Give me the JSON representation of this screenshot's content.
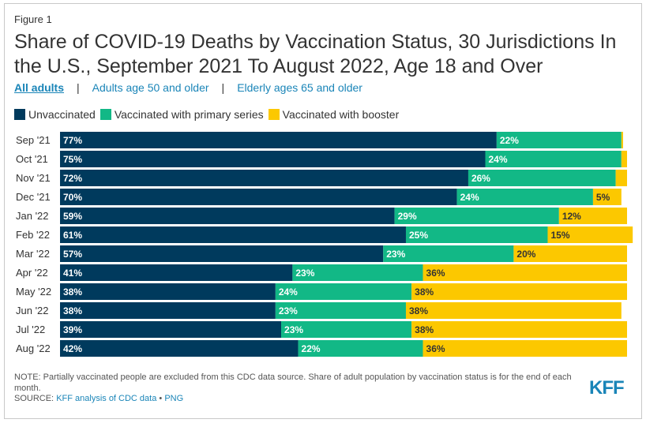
{
  "figure_label": "Figure 1",
  "title": "Share of COVID-19 Deaths by Vaccination Status, 30 Jurisdictions In the U.S., September 2021 To August 2022, Age 18 and Over",
  "tabs": [
    {
      "label": "All adults",
      "active": true
    },
    {
      "label": "Adults age 50 and older",
      "active": false
    },
    {
      "label": "Elderly ages 65 and older",
      "active": false
    }
  ],
  "tab_separator": "|",
  "note": "NOTE: Partially vaccinated people are excluded from this CDC data source. Share of adult population by vaccination status is for the end of each month.",
  "source": {
    "prefix": "SOURCE: ",
    "link_text": "KFF analysis of CDC data",
    "separator": " • ",
    "png_text": "PNG"
  },
  "logo_text": "KFF",
  "colors": {
    "unvaccinated": "#003a5d",
    "primary": "#12b886",
    "booster": "#fcc800"
  },
  "chart_data": {
    "type": "bar",
    "orientation": "horizontal",
    "stacked": true,
    "xlim": [
      0,
      100
    ],
    "categories": [
      "Sep '21",
      "Oct '21",
      "Nov '21",
      "Dec '21",
      "Jan '22",
      "Feb '22",
      "Mar '22",
      "Apr '22",
      "May '22",
      "Jun '22",
      "Jul '22",
      "Aug '22"
    ],
    "series": [
      {
        "name": "Unvaccinated",
        "values": [
          77,
          75,
          72,
          70,
          59,
          61,
          57,
          41,
          38,
          38,
          39,
          42
        ],
        "labels": [
          "77%",
          "75%",
          "72%",
          "70%",
          "59%",
          "61%",
          "57%",
          "41%",
          "38%",
          "38%",
          "39%",
          "42%"
        ]
      },
      {
        "name": "Vaccinated with primary series",
        "values": [
          22,
          24,
          26,
          24,
          29,
          25,
          23,
          23,
          24,
          23,
          23,
          22
        ],
        "labels": [
          "22%",
          "24%",
          "26%",
          "24%",
          "29%",
          "25%",
          "23%",
          "23%",
          "24%",
          "23%",
          "23%",
          "22%"
        ]
      },
      {
        "name": "Vaccinated with booster",
        "values": [
          0.3,
          1,
          2,
          5,
          12,
          15,
          20,
          36,
          38,
          38,
          38,
          36
        ],
        "labels": [
          "",
          "",
          "",
          "5%",
          "12%",
          "15%",
          "20%",
          "36%",
          "38%",
          "38%",
          "38%",
          "36%"
        ]
      }
    ],
    "legend_position": "top-left",
    "grid": false
  }
}
